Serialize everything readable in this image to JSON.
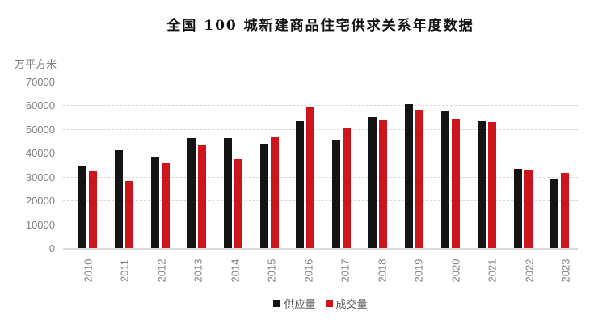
{
  "title": "全国 100 城新建商品住宅供求关系年度数据",
  "colors": {
    "supply_bar": "#141414",
    "transaction_bar": "#cc151d",
    "gridline": "#d9d9d9",
    "axis_text": "#7f7f7f",
    "legend_text": "#555555",
    "title_text": "#111111"
  },
  "chart_data": {
    "type": "bar",
    "title": "全国 100 城新建商品住宅供求关系年度数据",
    "ylabel": "万平方米",
    "xlabel": "",
    "ylim": [
      0,
      70000
    ],
    "yticks": [
      0,
      10000,
      20000,
      30000,
      40000,
      50000,
      60000,
      70000
    ],
    "grid": "horizontal-dashed",
    "legend_position": "bottom-center",
    "x_tick_rotation": -90,
    "categories": [
      "2010",
      "2011",
      "2012",
      "2013",
      "2014",
      "2015",
      "2016",
      "2017",
      "2018",
      "2019",
      "2020",
      "2021",
      "2022",
      "2023"
    ],
    "series": [
      {
        "name": "供应量",
        "color": "#141414",
        "values": [
          34900,
          41500,
          38900,
          46400,
          46400,
          44100,
          53800,
          45800,
          55500,
          60700,
          58200,
          53700,
          33600,
          29400
        ]
      },
      {
        "name": "成交量",
        "color": "#cc151d",
        "values": [
          32600,
          28400,
          35900,
          43400,
          37700,
          47000,
          59700,
          51100,
          54400,
          58400,
          54600,
          53300,
          32900,
          31900
        ]
      }
    ]
  }
}
